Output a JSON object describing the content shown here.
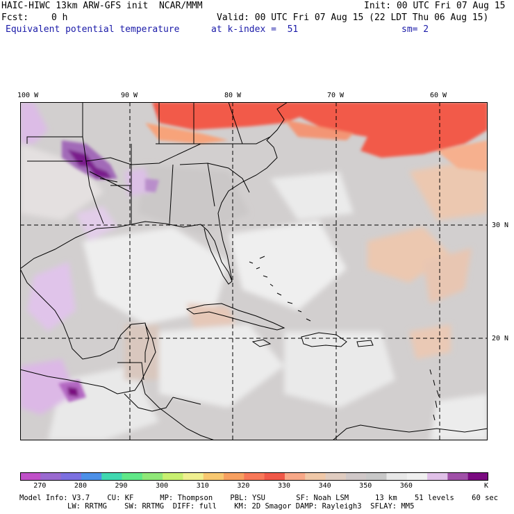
{
  "header": {
    "title": "HAIC-HIWC 13km ARW-GFS init  NCAR/MMM",
    "init": "Init: 00 UTC Fri 07 Aug 15",
    "fcst_label": "Fcst:",
    "fcst_value": "0 h",
    "valid": "Valid: 00 UTC Fri 07 Aug 15 (22 LDT Thu 06 Aug 15)",
    "field": "Equivalent potential temperature",
    "level": "at k-index =  51",
    "smooth": "sm= 2"
  },
  "map": {
    "lon_labels": [
      "100 W",
      "90 W",
      "80 W",
      "70 W",
      "60 W"
    ],
    "lat_labels": [
      "30 N",
      "20 N"
    ]
  },
  "colorbar": {
    "unit": "K",
    "tick_labels": [
      "270",
      "280",
      "290",
      "300",
      "310",
      "320",
      "330",
      "340",
      "350",
      "360"
    ],
    "colors": [
      "#c050c8",
      "#9a6ad0",
      "#7c70e0",
      "#4c90e8",
      "#40d8b0",
      "#60e888",
      "#90e878",
      "#c8f070",
      "#f0f090",
      "#f8c870",
      "#f8a060",
      "#f87858",
      "#f05848",
      "#f8a888",
      "#f0c8a8",
      "#e0ccc0",
      "#d0c8c8",
      "#c8c8c8",
      "#e8e8e8",
      "#f0f0f0",
      "#e0c0e8",
      "#a050a8",
      "#7a0a80"
    ]
  },
  "footer": {
    "line1": "Model Info: V3.7    CU: KF      MP: Thompson    PBL: YSU       SF: Noah LSM      13 km    51 levels    60 sec",
    "line2": "LW: RRTMG    SW: RRTMG  DIFF: full    KM: 2D Smagor DAMP: Rayleigh3  SFLAY: MM5"
  }
}
